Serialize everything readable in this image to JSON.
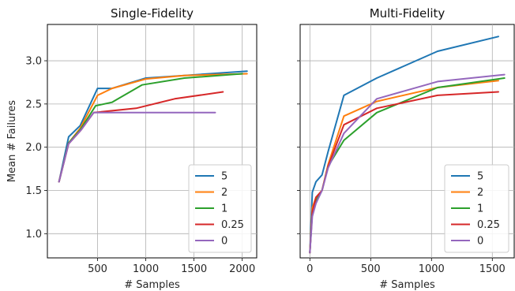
{
  "chart_data": [
    {
      "type": "line",
      "title": "Single-Fidelity",
      "xlabel": "# Samples",
      "ylabel": "Mean # Failures",
      "xlim": [
        -20,
        2150
      ],
      "ylim": [
        0.72,
        3.42
      ],
      "xticks": [
        500,
        1000,
        1500,
        2000
      ],
      "yticks": [
        1.0,
        1.5,
        2.0,
        2.5,
        3.0
      ],
      "ytick_labels": [
        "1.0",
        "1.5",
        "2.0",
        "2.5",
        "3.0"
      ],
      "show_yticklabels": true,
      "grid": true,
      "legend_position": "lower-right",
      "series": [
        {
          "name": "5",
          "color": "#1f77b4",
          "x": [
            100,
            200,
            320,
            500,
            650,
            1000,
            1400,
            2050
          ],
          "y": [
            1.6,
            2.12,
            2.25,
            2.68,
            2.68,
            2.8,
            2.83,
            2.88
          ]
        },
        {
          "name": "2",
          "color": "#ff7f0e",
          "x": [
            100,
            200,
            320,
            500,
            650,
            1000,
            1400,
            2050
          ],
          "y": [
            1.6,
            2.05,
            2.22,
            2.6,
            2.68,
            2.79,
            2.83,
            2.85
          ]
        },
        {
          "name": "1",
          "color": "#2ca02c",
          "x": [
            100,
            200,
            320,
            480,
            650,
            960,
            1400,
            2000
          ],
          "y": [
            1.6,
            2.05,
            2.2,
            2.48,
            2.52,
            2.72,
            2.8,
            2.85
          ]
        },
        {
          "name": "0.25",
          "color": "#d62728",
          "x": [
            100,
            200,
            330,
            460,
            900,
            1300,
            1800
          ],
          "y": [
            1.6,
            2.04,
            2.2,
            2.4,
            2.45,
            2.56,
            2.64
          ]
        },
        {
          "name": "0",
          "color": "#9467bd",
          "x": [
            100,
            200,
            330,
            460,
            900,
            1300,
            1720
          ],
          "y": [
            1.6,
            2.04,
            2.2,
            2.4,
            2.4,
            2.4,
            2.4
          ]
        }
      ]
    },
    {
      "type": "line",
      "title": "Multi-Fidelity",
      "xlabel": "# Samples",
      "ylabel": "",
      "xlim": [
        -80,
        1680
      ],
      "ylim": [
        0.72,
        3.42
      ],
      "xticks": [
        0,
        500,
        1000,
        1500
      ],
      "yticks": [
        1.0,
        1.5,
        2.0,
        2.5,
        3.0
      ],
      "ytick_labels": [
        "1.0",
        "1.5",
        "2.0",
        "2.5",
        "3.0"
      ],
      "show_yticklabels": false,
      "grid": true,
      "legend_position": "lower-right",
      "series": [
        {
          "name": "5",
          "color": "#1f77b4",
          "x": [
            0,
            20,
            50,
            100,
            150,
            280,
            550,
            1050,
            1550
          ],
          "y": [
            0.78,
            1.48,
            1.6,
            1.68,
            1.95,
            2.6,
            2.8,
            3.11,
            3.28
          ]
        },
        {
          "name": "2",
          "color": "#ff7f0e",
          "x": [
            0,
            20,
            50,
            100,
            150,
            280,
            550,
            1050,
            1550
          ],
          "y": [
            0.78,
            1.3,
            1.42,
            1.5,
            1.8,
            2.36,
            2.53,
            2.69,
            2.77
          ]
        },
        {
          "name": "1",
          "color": "#2ca02c",
          "x": [
            0,
            20,
            50,
            100,
            150,
            280,
            550,
            1050,
            1600
          ],
          "y": [
            0.78,
            1.25,
            1.38,
            1.5,
            1.78,
            2.08,
            2.4,
            2.69,
            2.8
          ]
        },
        {
          "name": "0.25",
          "color": "#d62728",
          "x": [
            0,
            20,
            50,
            100,
            150,
            280,
            550,
            1050,
            1550
          ],
          "y": [
            0.78,
            1.25,
            1.42,
            1.5,
            1.78,
            2.26,
            2.45,
            2.6,
            2.64
          ]
        },
        {
          "name": "0",
          "color": "#9467bd",
          "x": [
            0,
            20,
            50,
            100,
            150,
            280,
            550,
            1050,
            1600
          ],
          "y": [
            0.78,
            1.2,
            1.35,
            1.5,
            1.76,
            2.16,
            2.56,
            2.76,
            2.84
          ]
        }
      ]
    }
  ]
}
